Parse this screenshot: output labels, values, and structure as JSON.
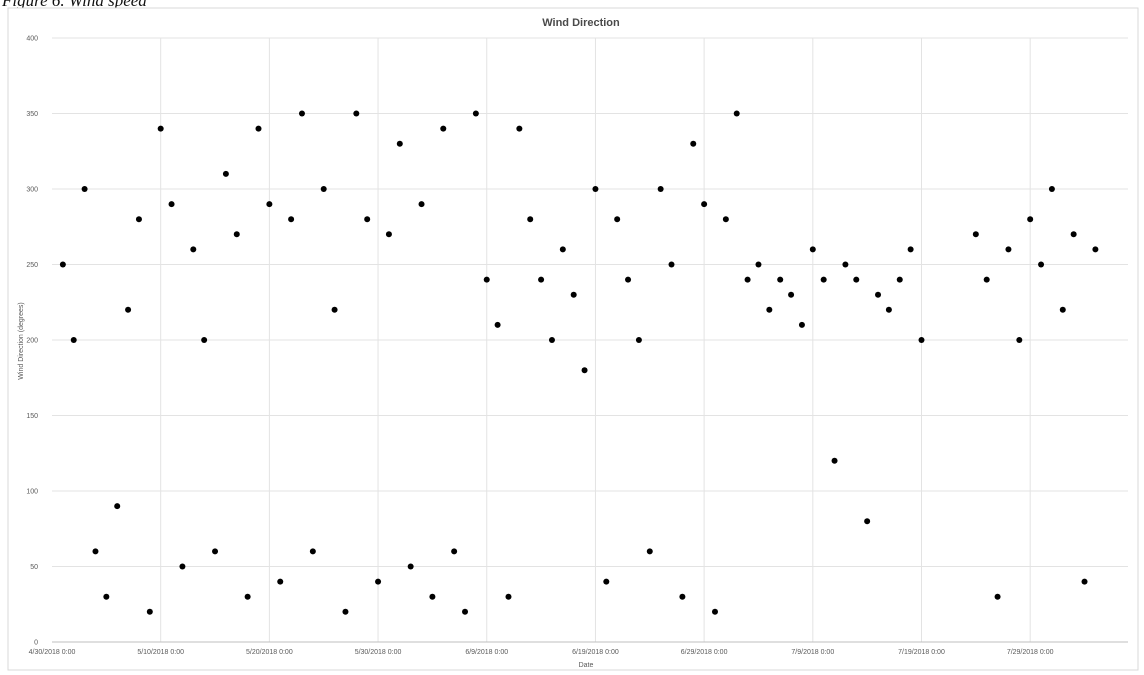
{
  "caption": "Figure 6. Wind speed",
  "chart_data": {
    "type": "scatter",
    "title": "Wind Direction",
    "xlabel": "Date",
    "ylabel": "Wind Direction (degrees)",
    "ylim": [
      0,
      400
    ],
    "yticks": [
      0,
      50,
      100,
      150,
      200,
      250,
      300,
      350,
      400
    ],
    "xlim": [
      "4/30/2018 0:00",
      "8/7/2018 0:00"
    ],
    "xticks": [
      "4/30/2018 0:00",
      "5/10/2018 0:00",
      "5/20/2018 0:00",
      "5/30/2018 0:00",
      "6/9/2018 0:00",
      "6/19/2018 0:00",
      "6/29/2018 0:00",
      "7/9/2018 0:00",
      "7/19/2018 0:00",
      "7/29/2018 0:00"
    ],
    "grid": true,
    "marker_color": "#000000",
    "series": [
      {
        "points": [
          [
            "5/1/2018 6:00",
            250
          ],
          [
            "5/2/2018 0:00",
            200
          ],
          [
            "5/3/2018 12:00",
            300
          ],
          [
            "5/4/2018 0:00",
            60
          ],
          [
            "5/5/2018 6:00",
            30
          ],
          [
            "5/6/2018 0:00",
            90
          ],
          [
            "5/7/2018 0:00",
            220
          ],
          [
            "5/8/2018 0:00",
            280
          ],
          [
            "5/9/2018 0:00",
            20
          ],
          [
            "5/10/2018 0:00",
            340
          ],
          [
            "5/11/2018 0:00",
            290
          ],
          [
            "5/12/2018 0:00",
            50
          ],
          [
            "5/13/2018 0:00",
            260
          ],
          [
            "5/14/2018 0:00",
            200
          ],
          [
            "5/15/2018 0:00",
            60
          ],
          [
            "5/16/2018 0:00",
            310
          ],
          [
            "5/17/2018 0:00",
            270
          ],
          [
            "5/18/2018 0:00",
            30
          ],
          [
            "5/19/2018 0:00",
            340
          ],
          [
            "5/20/2018 0:00",
            290
          ],
          [
            "5/21/2018 0:00",
            40
          ],
          [
            "5/22/2018 0:00",
            280
          ],
          [
            "5/23/2018 0:00",
            350
          ],
          [
            "5/24/2018 0:00",
            60
          ],
          [
            "5/25/2018 0:00",
            300
          ],
          [
            "5/26/2018 0:00",
            220
          ],
          [
            "5/27/2018 0:00",
            20
          ],
          [
            "5/28/2018 0:00",
            350
          ],
          [
            "5/29/2018 0:00",
            280
          ],
          [
            "5/30/2018 0:00",
            40
          ],
          [
            "5/31/2018 0:00",
            270
          ],
          [
            "6/1/2018 0:00",
            330
          ],
          [
            "6/2/2018 0:00",
            50
          ],
          [
            "6/3/2018 0:00",
            290
          ],
          [
            "6/4/2018 0:00",
            30
          ],
          [
            "6/5/2018 0:00",
            340
          ],
          [
            "6/6/2018 0:00",
            60
          ],
          [
            "6/7/2018 0:00",
            20
          ],
          [
            "6/8/2018 0:00",
            350
          ],
          [
            "6/9/2018 0:00",
            240
          ],
          [
            "6/10/2018 0:00",
            210
          ],
          [
            "6/11/2018 0:00",
            30
          ],
          [
            "6/12/2018 0:00",
            340
          ],
          [
            "6/13/2018 0:00",
            280
          ],
          [
            "6/14/2018 0:00",
            240
          ],
          [
            "6/15/2018 0:00",
            200
          ],
          [
            "6/16/2018 0:00",
            260
          ],
          [
            "6/17/2018 0:00",
            230
          ],
          [
            "6/18/2018 0:00",
            180
          ],
          [
            "6/19/2018 0:00",
            300
          ],
          [
            "6/20/2018 0:00",
            40
          ],
          [
            "6/21/2018 0:00",
            280
          ],
          [
            "6/22/2018 0:00",
            240
          ],
          [
            "6/23/2018 0:00",
            200
          ],
          [
            "6/24/2018 0:00",
            60
          ],
          [
            "6/25/2018 0:00",
            300
          ],
          [
            "6/26/2018 0:00",
            250
          ],
          [
            "6/27/2018 0:00",
            30
          ],
          [
            "6/28/2018 0:00",
            330
          ],
          [
            "6/29/2018 0:00",
            290
          ],
          [
            "6/30/2018 0:00",
            20
          ],
          [
            "7/1/2018 0:00",
            280
          ],
          [
            "7/2/2018 0:00",
            350
          ],
          [
            "7/3/2018 0:00",
            240
          ],
          [
            "7/4/2018 0:00",
            250
          ],
          [
            "7/5/2018 0:00",
            220
          ],
          [
            "7/6/2018 0:00",
            240
          ],
          [
            "7/7/2018 0:00",
            230
          ],
          [
            "7/8/2018 0:00",
            210
          ],
          [
            "7/9/2018 0:00",
            260
          ],
          [
            "7/10/2018 0:00",
            240
          ],
          [
            "7/11/2018 0:00",
            120
          ],
          [
            "7/12/2018 0:00",
            250
          ],
          [
            "7/13/2018 0:00",
            240
          ],
          [
            "7/14/2018 0:00",
            80
          ],
          [
            "7/15/2018 0:00",
            230
          ],
          [
            "7/16/2018 0:00",
            220
          ],
          [
            "7/17/2018 0:00",
            240
          ],
          [
            "7/18/2018 0:00",
            260
          ],
          [
            "7/19/2018 0:00",
            200
          ],
          [
            "7/24/2018 0:00",
            270
          ],
          [
            "7/25/2018 0:00",
            240
          ],
          [
            "7/26/2018 0:00",
            30
          ],
          [
            "7/27/2018 0:00",
            260
          ],
          [
            "7/28/2018 0:00",
            200
          ],
          [
            "7/29/2018 0:00",
            280
          ],
          [
            "7/30/2018 0:00",
            250
          ],
          [
            "7/31/2018 0:00",
            300
          ],
          [
            "8/1/2018 0:00",
            220
          ],
          [
            "8/2/2018 0:00",
            270
          ],
          [
            "8/3/2018 0:00",
            40
          ],
          [
            "8/4/2018 0:00",
            260
          ]
        ]
      }
    ]
  }
}
